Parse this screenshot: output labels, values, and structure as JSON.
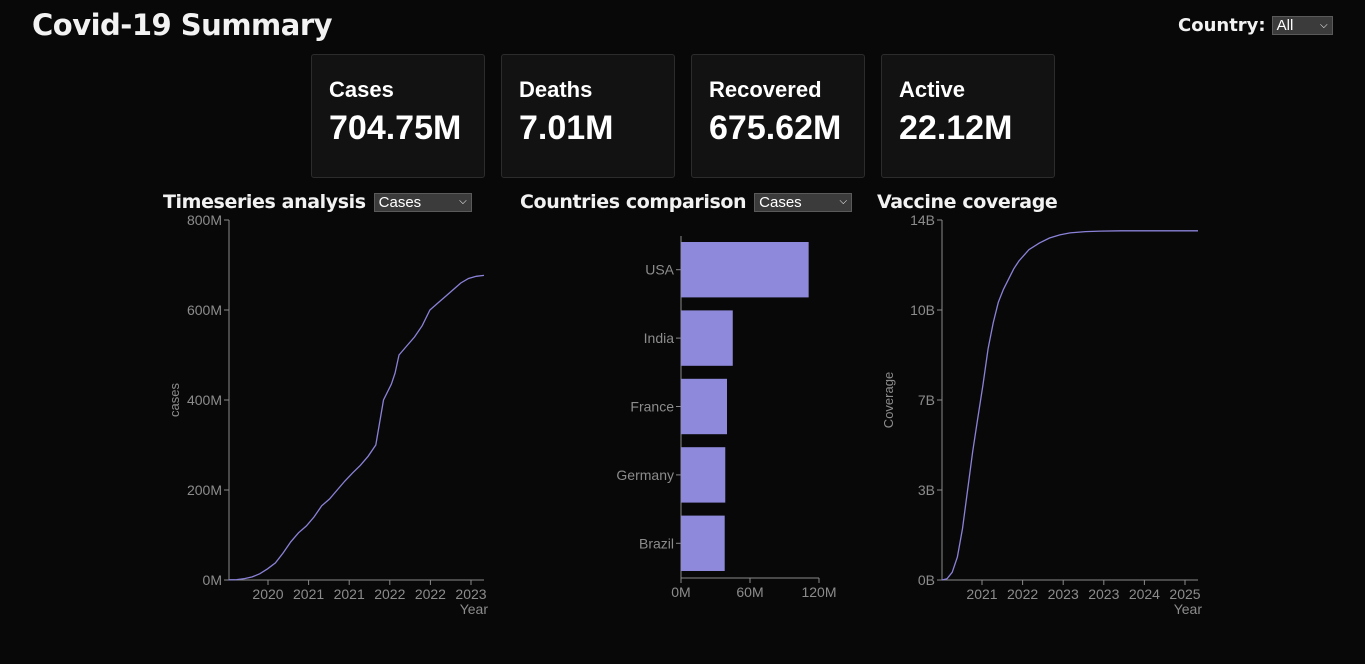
{
  "header": {
    "title": "Covid-19 Summary",
    "country_label": "Country:",
    "country_value": "All"
  },
  "cards": [
    {
      "label": "Cases",
      "value": "704.75M"
    },
    {
      "label": "Deaths",
      "value": "7.01M"
    },
    {
      "label": "Recovered",
      "value": "675.62M"
    },
    {
      "label": "Active",
      "value": "22.12M"
    }
  ],
  "panels": {
    "timeseries": {
      "title": "Timeseries analysis",
      "metric": "Cases"
    },
    "countries": {
      "title": "Countries comparison",
      "metric": "Cases"
    },
    "vaccine": {
      "title": "Vaccine coverage"
    }
  },
  "colors": {
    "series": "#8a82d8",
    "bar": "#8f89dc",
    "axis": "#8a8a8a"
  },
  "chart_data": [
    {
      "type": "line",
      "xlabel": "Year",
      "ylabel": "cases",
      "x_tick_labels": [
        "2020",
        "2021",
        "2021",
        "2022",
        "2022",
        "2023"
      ],
      "y_tick_labels": [
        "0M",
        "200M",
        "400M",
        "600M",
        "800M"
      ],
      "ylim": [
        0,
        800
      ],
      "xlim": [
        2019.9,
        2023.2
      ],
      "x": [
        2019.9,
        2020.0,
        2020.1,
        2020.2,
        2020.3,
        2020.4,
        2020.5,
        2020.6,
        2020.7,
        2020.8,
        2020.9,
        2021.0,
        2021.1,
        2021.2,
        2021.3,
        2021.4,
        2021.5,
        2021.6,
        2021.7,
        2021.8,
        2021.9,
        2022.0,
        2022.05,
        2022.1,
        2022.2,
        2022.3,
        2022.4,
        2022.5,
        2022.6,
        2022.7,
        2022.8,
        2022.9,
        2023.0,
        2023.1,
        2023.2
      ],
      "values": [
        0.5,
        1,
        3,
        7,
        14,
        25,
        38,
        60,
        85,
        105,
        120,
        140,
        165,
        180,
        200,
        220,
        238,
        255,
        275,
        300,
        400,
        435,
        460,
        500,
        520,
        540,
        565,
        600,
        615,
        630,
        645,
        660,
        670,
        675,
        677
      ]
    },
    {
      "type": "bar",
      "orientation": "horizontal",
      "categories": [
        "USA",
        "India",
        "France",
        "Germany",
        "Brazil"
      ],
      "values": [
        111,
        45,
        40,
        38.5,
        38
      ],
      "x_tick_labels": [
        "0M",
        "60M",
        "120M"
      ],
      "xlim": [
        0,
        120
      ]
    },
    {
      "type": "line",
      "xlabel": "Year",
      "ylabel": "Coverage",
      "x_tick_labels": [
        "2021",
        "2022",
        "2023",
        "2023",
        "2024",
        "2025"
      ],
      "y_tick_labels": [
        "0B",
        "3B",
        "7B",
        "10B",
        "14B"
      ],
      "ylim": [
        0,
        14
      ],
      "xlim": [
        2020.5,
        2025.5
      ],
      "x": [
        2020.5,
        2020.6,
        2020.7,
        2020.8,
        2020.9,
        2021.0,
        2021.1,
        2021.2,
        2021.3,
        2021.4,
        2021.5,
        2021.6,
        2021.7,
        2021.8,
        2021.9,
        2022.0,
        2022.2,
        2022.4,
        2022.6,
        2022.8,
        2023.0,
        2023.3,
        2023.6,
        2024.0,
        2024.5,
        2025.0,
        2025.5
      ],
      "values": [
        0,
        0.05,
        0.3,
        0.9,
        2.0,
        3.5,
        5.0,
        6.3,
        7.6,
        9.0,
        10.0,
        10.8,
        11.3,
        11.7,
        12.1,
        12.4,
        12.85,
        13.1,
        13.3,
        13.42,
        13.5,
        13.55,
        13.57,
        13.58,
        13.58,
        13.58,
        13.58
      ]
    }
  ]
}
